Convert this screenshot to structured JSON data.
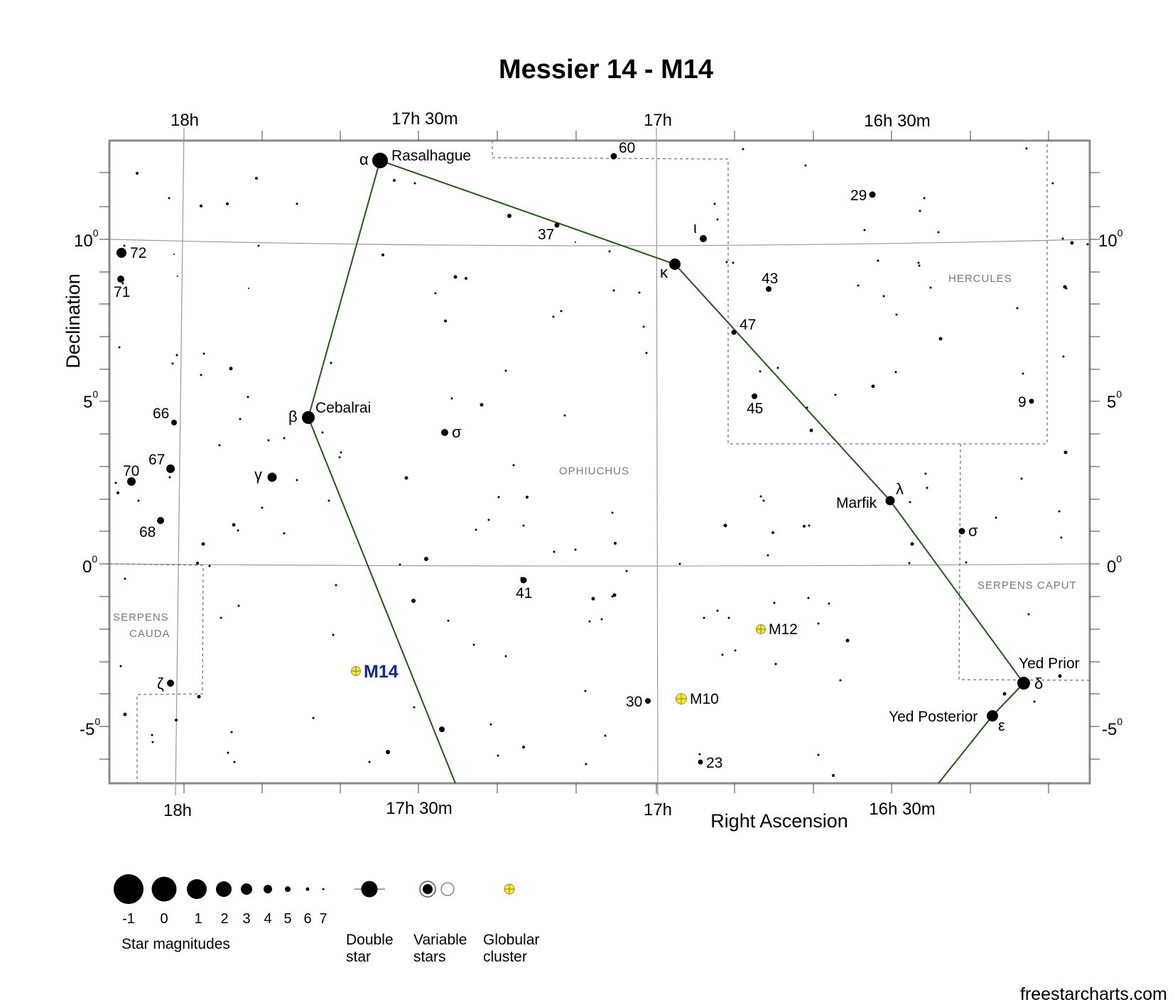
{
  "title": "Messier 14 - M14",
  "axes": {
    "x_label": "Right Ascension",
    "y_label": "Declination",
    "ra_ticks": [
      "18h",
      "17h 30m",
      "17h",
      "16h 30m"
    ],
    "dec_ticks": [
      {
        "base": "10",
        "exp": "0"
      },
      {
        "base": "5",
        "exp": "0"
      },
      {
        "base": "0",
        "exp": "0"
      },
      {
        "base": "-5",
        "exp": "0"
      }
    ]
  },
  "constellations": {
    "ophiuchus": "Ophiuchus",
    "hercules": "Hercules",
    "serpens_caput": "Serpens Caput",
    "serpens_cauda_1": "Serpens",
    "serpens_cauda_2": "Cauda"
  },
  "named_stars": {
    "rasalhague": "Rasalhague",
    "cebalrai": "Cebalrai",
    "marfik": "Marfik",
    "yed_prior": "Yed Prior",
    "yed_posterior": "Yed Posterior"
  },
  "greek": {
    "alpha": "α",
    "beta": "β",
    "gamma": "γ",
    "kappa": "κ",
    "iota": "ι",
    "lambda": "λ",
    "delta": "δ",
    "epsilon": "ε",
    "zeta": "ζ",
    "sigma1": "σ",
    "sigma2": "σ"
  },
  "flamsteed": {
    "n60": "60",
    "n37": "37",
    "n29": "29",
    "n72": "72",
    "n71": "71",
    "n43": "43",
    "n47": "47",
    "n45": "45",
    "n9": "9",
    "n66": "66",
    "n67": "67",
    "n70": "70",
    "n68": "68",
    "n41": "41",
    "n30": "30",
    "n23": "23"
  },
  "clusters": {
    "m14": "M14",
    "m12": "M12",
    "m10": "M10"
  },
  "legend": {
    "magnitudes": [
      "-1",
      "0",
      "1",
      "2",
      "3",
      "4",
      "5",
      "6",
      "7"
    ],
    "star_magnitudes": "Star magnitudes",
    "double_1": "Double",
    "double_2": "star",
    "variable_1": "Variable",
    "variable_2": "stars",
    "globular_1": "Globular",
    "globular_2": "cluster"
  },
  "credit": "freestarcharts.com",
  "colors": {
    "asterism": "#1f5c12",
    "cluster_fill": "#ffef00",
    "m14_label": "#0d2a8c",
    "frame": "#8a8a8a"
  }
}
